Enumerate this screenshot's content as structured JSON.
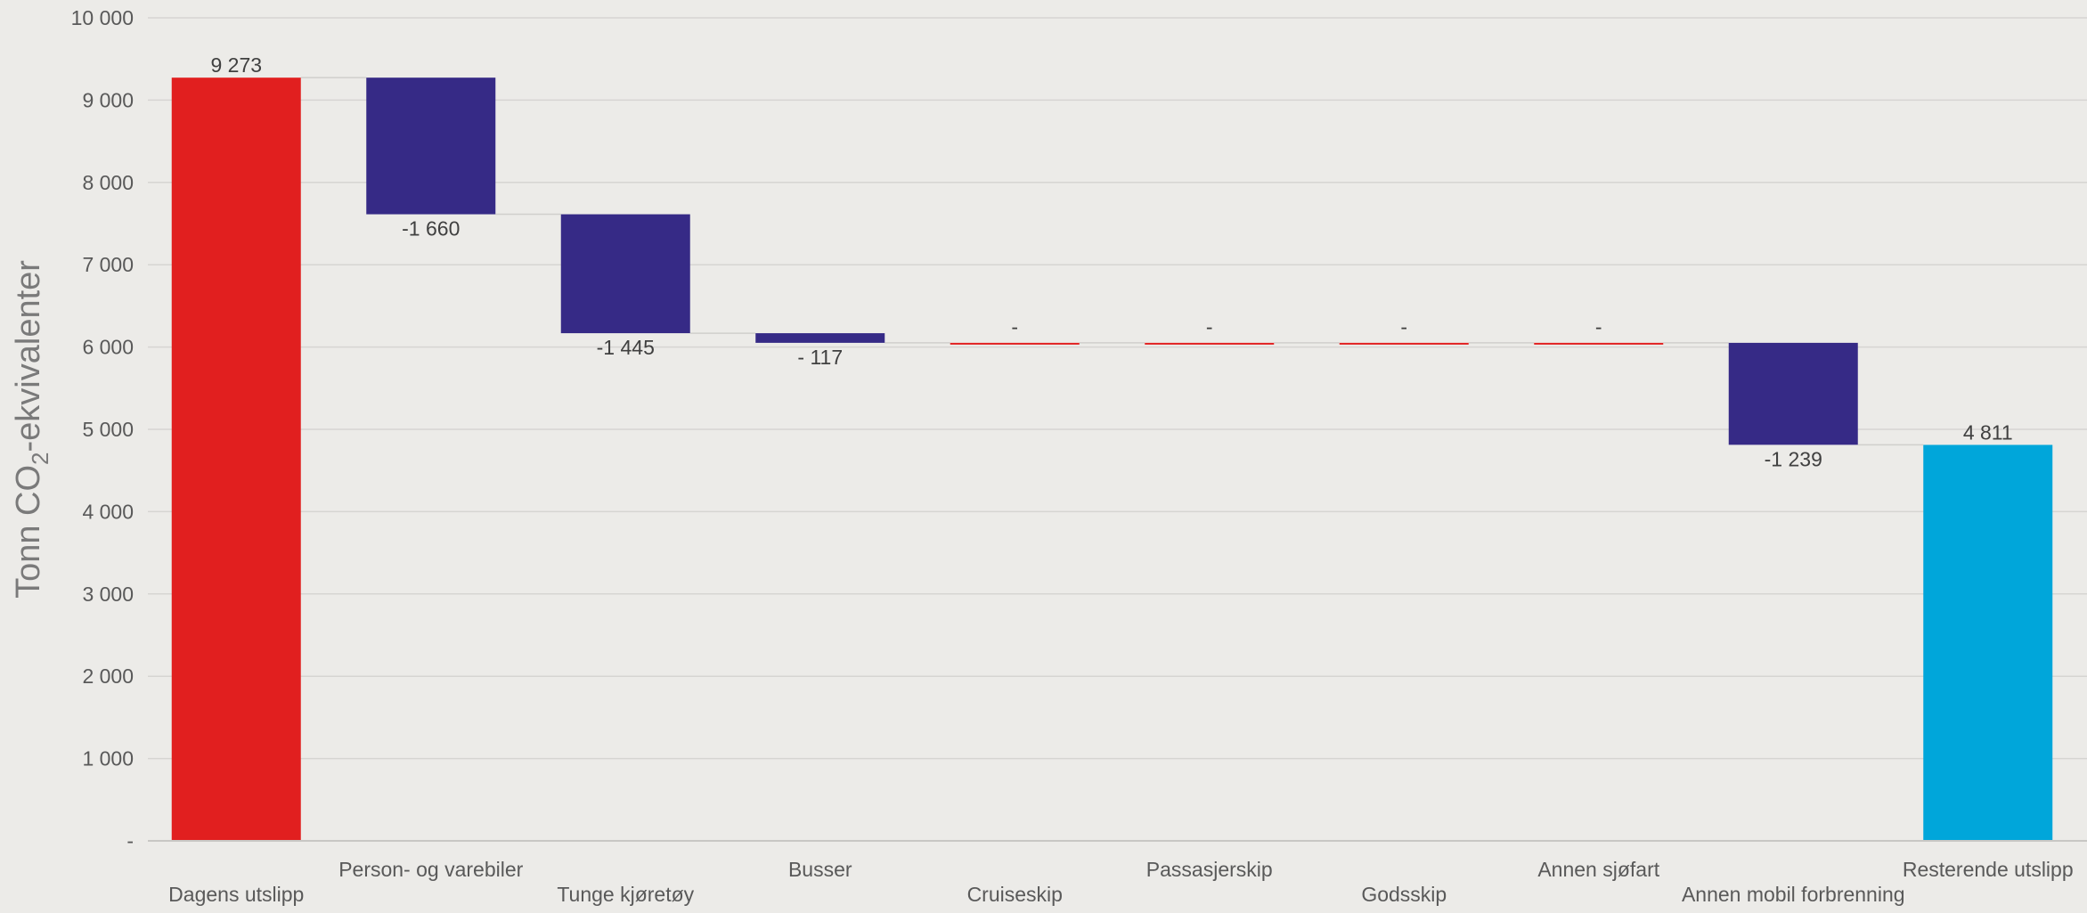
{
  "chart_data": {
    "type": "bar",
    "subtype": "waterfall",
    "title": "",
    "xlabel": "",
    "ylabel": "Tonn CO2-ekvivalenter",
    "ylabel_parts": {
      "before": "Tonn CO",
      "sub": "2",
      "after": "-ekvivalenter"
    },
    "ylim": [
      0,
      10000
    ],
    "yticks": [
      0,
      1000,
      2000,
      3000,
      4000,
      5000,
      6000,
      7000,
      8000,
      9000,
      10000
    ],
    "ytick_labels": [
      "-",
      "1 000",
      "2 000",
      "3 000",
      "4 000",
      "5 000",
      "6 000",
      "7 000",
      "8 000",
      "9 000",
      "10 000"
    ],
    "grid": true,
    "legend": "none",
    "categories": [
      "Dagens utslipp",
      "Person- og varebiler",
      "Tunge kjøretøy",
      "Busser",
      "Cruiseskip",
      "Passasjerskip",
      "Godsskip",
      "Annen sjøfart",
      "Annen mobil forbrenning",
      "Resterende utslipp"
    ],
    "kinds": [
      "total",
      "delta",
      "delta",
      "delta",
      "delta",
      "delta",
      "delta",
      "delta",
      "delta",
      "total"
    ],
    "values": [
      9273,
      -1660,
      -1445,
      -117,
      0,
      0,
      0,
      0,
      -1239,
      4811
    ],
    "data_labels": [
      "9 273",
      "-1 660",
      "-1 445",
      "- 117",
      "-",
      "-",
      "-",
      "-",
      "-1 239",
      "4 811"
    ],
    "colors": {
      "start_total": "#e11f1f",
      "decrease": "#362a86",
      "zero_change": "#e11f1f",
      "end_total": "#00a6da",
      "background": "#ecebe8"
    }
  }
}
